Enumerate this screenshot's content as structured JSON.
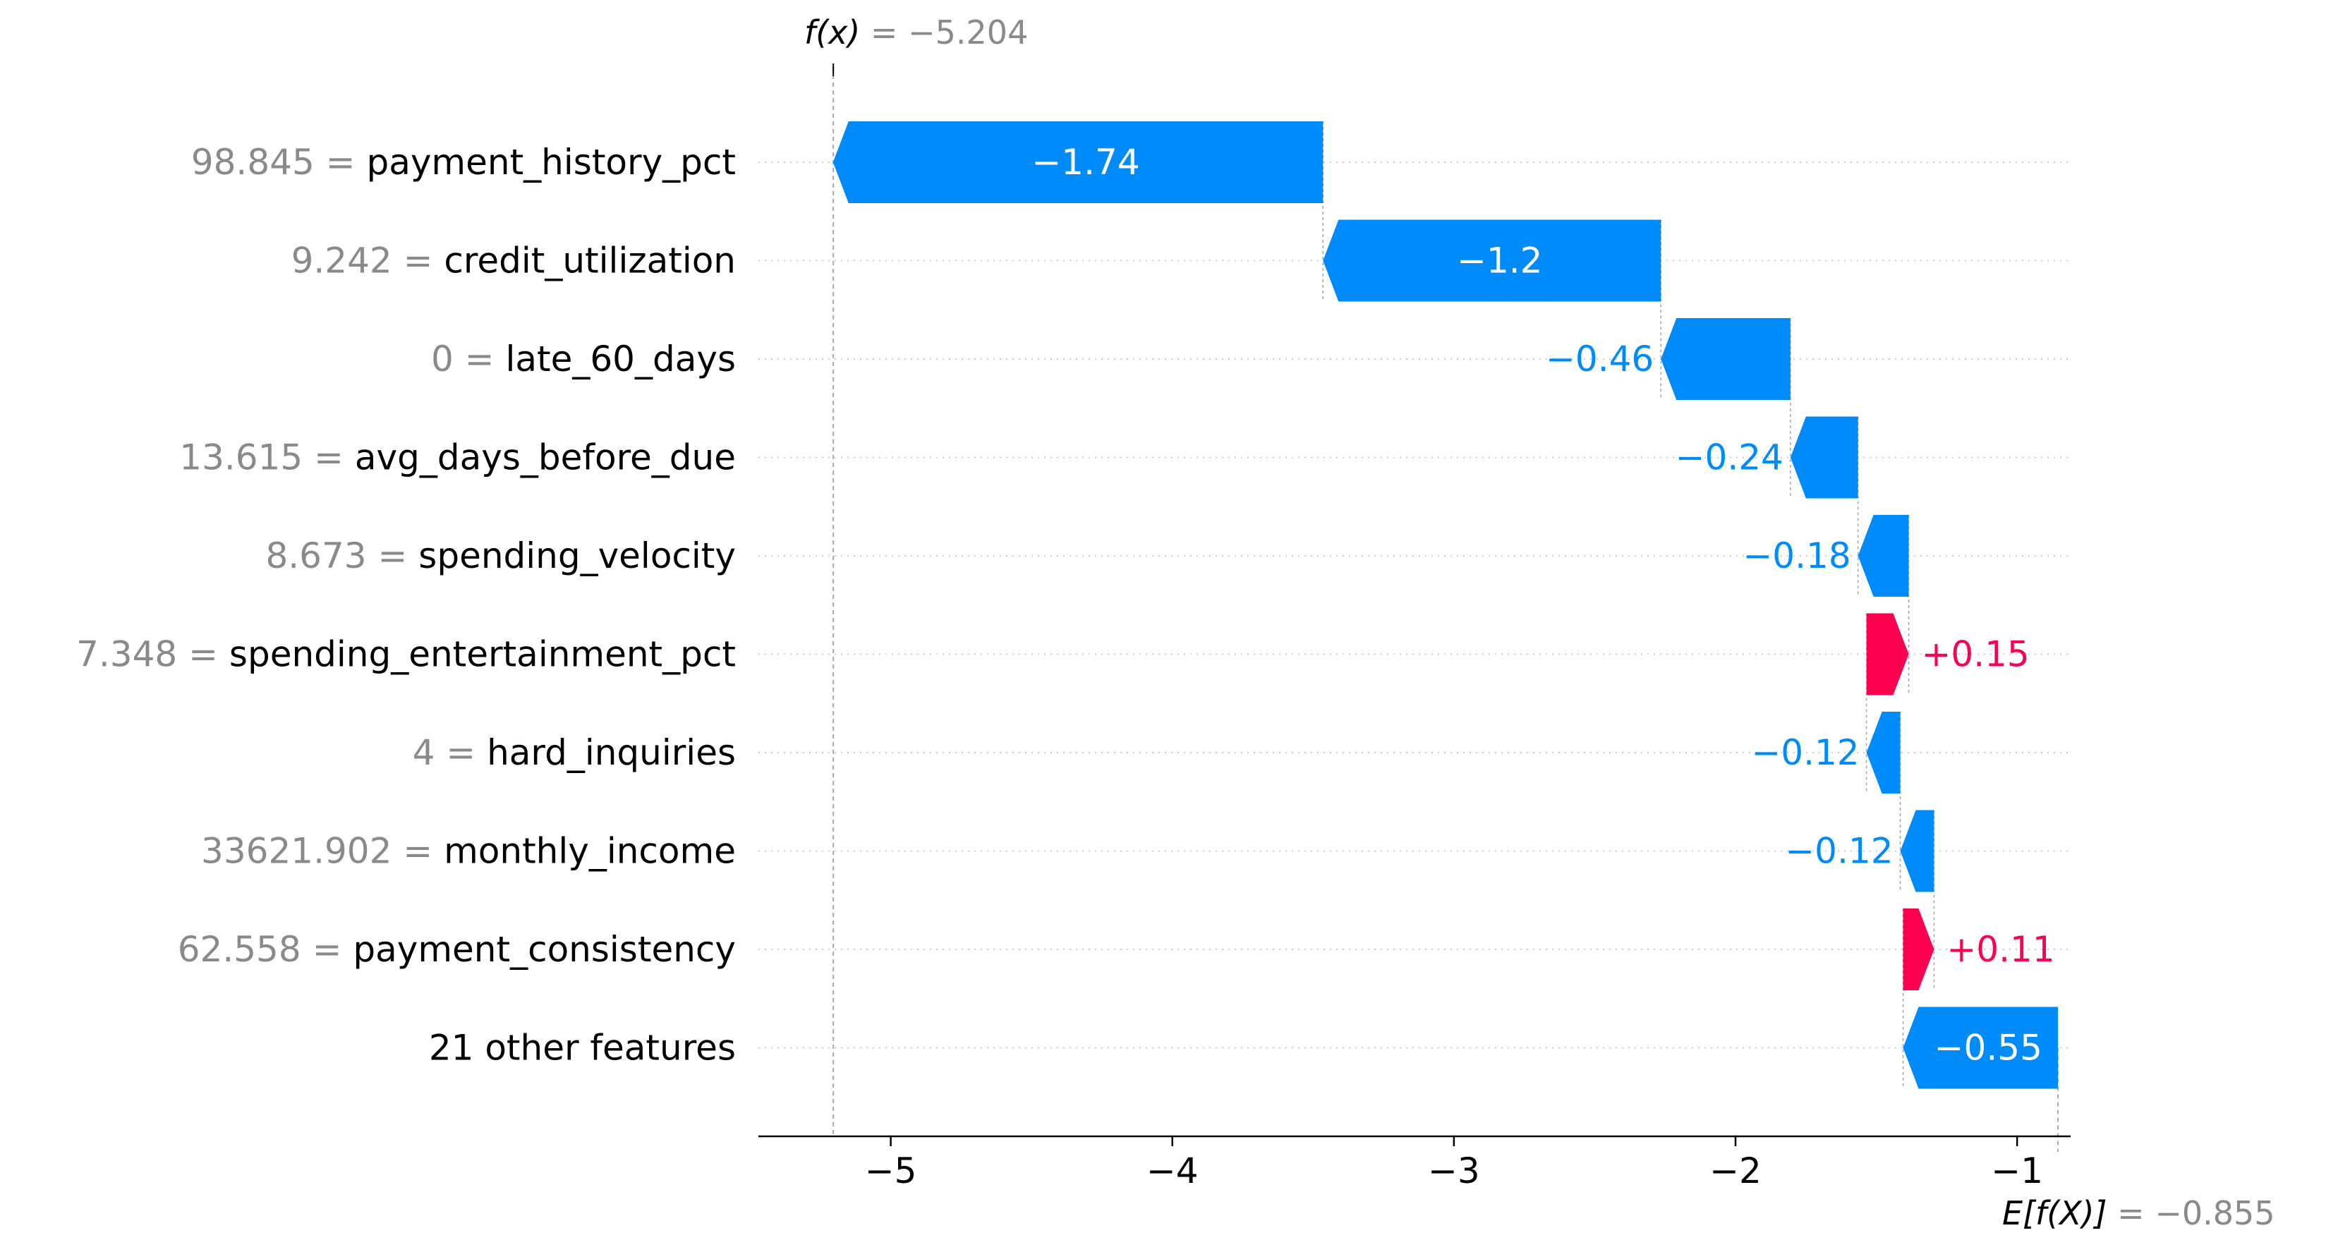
{
  "chart_data": {
    "type": "waterfall",
    "base_value": -0.855,
    "final_value": -5.204,
    "fx_label": {
      "prefix": "f(x)",
      "value": " = −5.204"
    },
    "efx_label": {
      "prefix": "E[f(X)]",
      "value": " = −0.855"
    },
    "features": [
      {
        "value": "98.845",
        "name": "payment_history_pct",
        "contribution": -1.74,
        "label": "−1.74"
      },
      {
        "value": "9.242",
        "name": "credit_utilization",
        "contribution": -1.2,
        "label": "−1.2"
      },
      {
        "value": "0",
        "name": "late_60_days",
        "contribution": -0.46,
        "label": "−0.46"
      },
      {
        "value": "13.615",
        "name": "avg_days_before_due",
        "contribution": -0.24,
        "label": "−0.24"
      },
      {
        "value": "8.673",
        "name": "spending_velocity",
        "contribution": -0.18,
        "label": "−0.18"
      },
      {
        "value": "7.348",
        "name": "spending_entertainment_pct",
        "contribution": 0.15,
        "label": "+0.15"
      },
      {
        "value": "4",
        "name": "hard_inquiries",
        "contribution": -0.12,
        "label": "−0.12"
      },
      {
        "value": "33621.902",
        "name": "monthly_income",
        "contribution": -0.12,
        "label": "−0.12"
      },
      {
        "value": "62.558",
        "name": "payment_consistency",
        "contribution": 0.11,
        "label": "+0.11"
      },
      {
        "value": "",
        "name": "21 other features",
        "contribution": -0.55,
        "label": "−0.55"
      }
    ],
    "x_ticks": [
      {
        "value": -5,
        "label": "−5"
      },
      {
        "value": -4,
        "label": "−4"
      },
      {
        "value": -3,
        "label": "−3"
      },
      {
        "value": -2,
        "label": "−2"
      },
      {
        "value": -1,
        "label": "−1"
      }
    ],
    "xlim": [
      -5.47,
      -0.81
    ],
    "colors": {
      "negative": "#008bfb",
      "positive": "#ff0051",
      "grid": "#cccccc",
      "muted": "#8a8a8a"
    }
  }
}
